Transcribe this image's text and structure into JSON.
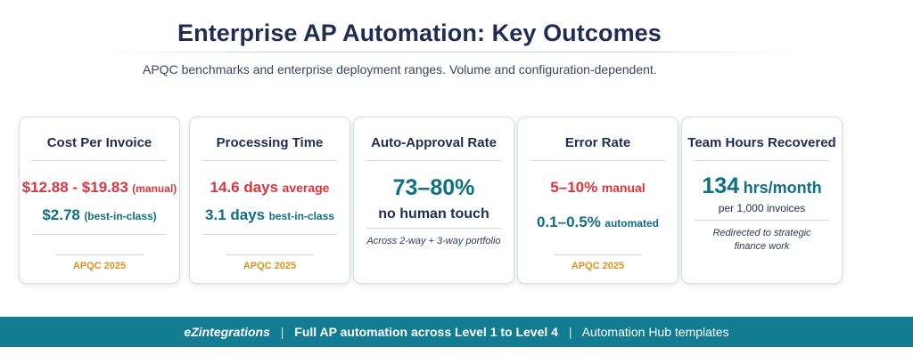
{
  "header": {
    "title": "Enterprise AP Automation: Key Outcomes",
    "subtitle": "APQC benchmarks and enterprise deployment ranges. Volume and configuration-dependent."
  },
  "cards": [
    {
      "title": "Cost Per Invoice",
      "primary_value": "$12.88 - $19.83",
      "primary_suffix": "(manual)",
      "secondary_value": "$2.78",
      "secondary_suffix": "(best-in-class)",
      "source": "APQC 2025"
    },
    {
      "title": "Processing Time",
      "primary_value": "14.6 days",
      "primary_suffix": "average",
      "secondary_value": "3.1 days",
      "secondary_suffix": "best-in-class",
      "source": "APQC 2025"
    },
    {
      "title": "Auto-Approval Rate",
      "headline": "73–80%",
      "subline": "no human touch",
      "note": "Across 2-way + 3-way portfolio"
    },
    {
      "title": "Error Rate",
      "primary_value": "5–10%",
      "primary_suffix": "manual",
      "secondary_value": "0.1–0.5%",
      "secondary_suffix": "automated",
      "source": "APQC 2025"
    },
    {
      "title": "Team Hours Recovered",
      "headline_value": "134",
      "headline_suffix": "hrs/month",
      "subline": "per 1,000 invoices",
      "note_line1": "Redirected to strategic",
      "note_line2": "finance work"
    }
  ],
  "footer": {
    "brand": "eZintegrations",
    "separator": "|",
    "middle": "Full AP automation across Level 1 to Level 4",
    "right": "Automation Hub templates"
  },
  "colors": {
    "title": "#1f2d52",
    "red": "#d9363e",
    "teal": "#0f6f84",
    "source": "#e0901b",
    "footer_bg": "#127c92"
  }
}
